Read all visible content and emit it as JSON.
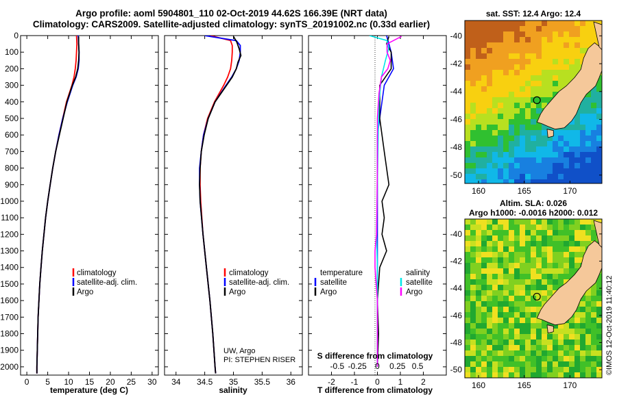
{
  "header": {
    "line1": "Argo profile: aoml 5904801_110 02-Oct-2019 44.62S 166.39E (NRT data)",
    "line2": "Climatology: CARS2009. Satellite-adjusted climatology: synTS_20191002.nc (0.33d earlier)"
  },
  "colors": {
    "climatology": "#ff0000",
    "satellite": "#0000ff",
    "argo": "#000000",
    "satellite_salinity": "#00e6e6",
    "argo_salinity": "#ff00ff",
    "land": "#f5c89a"
  },
  "chart_data": [
    {
      "type": "line",
      "id": "temperature",
      "xlabel": "temperature (deg C)",
      "xlim": [
        -1.5,
        31.5
      ],
      "xticks": [
        0,
        5,
        10,
        15,
        20,
        25,
        30
      ],
      "ylim": [
        0,
        2050
      ],
      "yticks": [
        0,
        100,
        200,
        300,
        400,
        500,
        600,
        700,
        800,
        900,
        1000,
        1100,
        1200,
        1300,
        1400,
        1500,
        1600,
        1700,
        1800,
        1900,
        2000
      ],
      "grid": false,
      "legend": {
        "position": "bottom-right",
        "entries": [
          "climatology",
          "satellite-adj. clim.",
          "Argo"
        ]
      },
      "series": [
        {
          "name": "climatology",
          "color": "#ff0000",
          "depth": [
            0,
            50,
            100,
            150,
            200,
            250,
            300,
            400,
            500,
            600,
            700,
            800,
            900,
            1000,
            1100,
            1200,
            1300,
            1400,
            1500,
            1600,
            1700,
            1800,
            1900,
            2000,
            2040
          ],
          "values": [
            11.9,
            12.0,
            11.9,
            11.8,
            11.6,
            11.3,
            10.8,
            9.5,
            8.6,
            7.7,
            6.9,
            6.2,
            5.6,
            5.0,
            4.5,
            4.1,
            3.7,
            3.4,
            3.1,
            2.9,
            2.7,
            2.6,
            2.5,
            2.4,
            2.4
          ]
        },
        {
          "name": "satellite-adj. clim.",
          "color": "#0000ff",
          "depth": [
            0,
            50,
            100,
            150,
            200,
            250,
            300,
            400,
            500,
            600,
            700,
            800,
            900,
            1000,
            1100,
            1200,
            1300,
            1400,
            1500,
            1600,
            1700,
            1800,
            1900,
            2000,
            2040
          ],
          "values": [
            12.3,
            12.4,
            12.5,
            12.5,
            12.3,
            11.8,
            11.0,
            9.7,
            8.6,
            7.7,
            6.9,
            6.2,
            5.6,
            5.0,
            4.5,
            4.1,
            3.7,
            3.4,
            3.1,
            2.9,
            2.7,
            2.6,
            2.5,
            2.4,
            2.4
          ]
        },
        {
          "name": "Argo",
          "color": "#000000",
          "depth": [
            5,
            50,
            100,
            150,
            200,
            250,
            300,
            400,
            500,
            600,
            700,
            800,
            900,
            1000,
            1100,
            1200,
            1300,
            1400,
            1500,
            1600,
            1700,
            1800,
            1900,
            2000,
            2040
          ],
          "values": [
            12.4,
            12.4,
            12.5,
            12.4,
            12.2,
            11.7,
            10.9,
            9.6,
            8.7,
            7.8,
            6.9,
            6.2,
            5.6,
            5.0,
            4.5,
            4.1,
            3.7,
            3.4,
            3.1,
            2.9,
            2.7,
            2.6,
            2.5,
            2.4,
            2.4
          ]
        }
      ]
    },
    {
      "type": "line",
      "id": "salinity",
      "xlabel": "salinity",
      "xlim": [
        33.8,
        36.2
      ],
      "xticks": [
        34,
        34.5,
        35,
        35.5,
        36
      ],
      "xticklabels": [
        "34",
        "34.5",
        "35",
        "35.5",
        "36"
      ],
      "ylim": [
        0,
        2050
      ],
      "legend": {
        "position": "bottom-right",
        "entries": [
          "climatology",
          "satellite-adj. clim.",
          "Argo"
        ]
      },
      "credit_lines": [
        "UW, Argo",
        "PI: STEPHEN RISER"
      ],
      "series": [
        {
          "name": "climatology",
          "color": "#ff0000",
          "depth": [
            0,
            30,
            60,
            100,
            150,
            200,
            250,
            300,
            400,
            500,
            600,
            700,
            800,
            900,
            1000,
            1200,
            1400,
            1600,
            1800,
            2000,
            2040
          ],
          "values": [
            34.6,
            34.95,
            34.98,
            34.98,
            34.97,
            34.95,
            34.9,
            34.83,
            34.67,
            34.55,
            34.48,
            34.44,
            34.42,
            34.42,
            34.43,
            34.47,
            34.53,
            34.59,
            34.64,
            34.68,
            34.69
          ]
        },
        {
          "name": "satellite-adj. clim.",
          "color": "#0000ff",
          "depth": [
            0,
            30,
            60,
            100,
            150,
            200,
            250,
            300,
            400,
            500,
            600,
            700,
            800,
            900,
            1000,
            1200,
            1400,
            1600,
            1800,
            2000,
            2040
          ],
          "values": [
            34.5,
            35.05,
            35.12,
            35.12,
            35.1,
            35.05,
            34.97,
            34.87,
            34.68,
            34.56,
            34.48,
            34.44,
            34.41,
            34.41,
            34.42,
            34.47,
            34.53,
            34.59,
            34.64,
            34.68,
            34.69
          ]
        },
        {
          "name": "Argo",
          "color": "#000000",
          "depth": [
            5,
            40,
            80,
            120,
            160,
            200,
            250,
            300,
            400,
            500,
            600,
            700,
            800,
            900,
            1000,
            1200,
            1400,
            1600,
            1800,
            2000,
            2040
          ],
          "values": [
            35.0,
            35.06,
            35.1,
            35.13,
            35.08,
            35.05,
            34.98,
            34.88,
            34.68,
            34.56,
            34.49,
            34.44,
            34.42,
            34.41,
            34.42,
            34.47,
            34.53,
            34.59,
            34.64,
            34.68,
            34.69
          ]
        }
      ]
    },
    {
      "type": "line",
      "id": "differences",
      "xlabel": "T difference from climatology",
      "xlim": [
        -3,
        3
      ],
      "xticks": [
        -2,
        -1,
        0,
        1,
        2
      ],
      "top_axis_label": "S difference from climatology",
      "top_axis_ticks": [
        "-0.5",
        "-0.25",
        "0",
        "0.25",
        "0.5"
      ],
      "ylim": [
        0,
        2050
      ],
      "legend": {
        "temperature_title": "temperature",
        "salinity_title": "salinity",
        "temperature_entries": [
          "satellite",
          "Argo"
        ],
        "salinity_entries": [
          "satellite",
          "Argo"
        ]
      },
      "series": [
        {
          "name": "T satellite",
          "color": "#0000ff",
          "depth": [
            0,
            50,
            100,
            200,
            300,
            400,
            600,
            800,
            1000,
            1200,
            1400,
            1600,
            1800,
            2000
          ],
          "values": [
            0.4,
            0.5,
            0.6,
            0.7,
            0.3,
            0.2,
            0.0,
            0.0,
            0.0,
            0.0,
            0.0,
            0.0,
            0.0,
            0.0
          ]
        },
        {
          "name": "T Argo",
          "color": "#000000",
          "depth": [
            5,
            50,
            100,
            200,
            300,
            400,
            500,
            700,
            900,
            1000,
            1100,
            1200,
            1300,
            1400,
            1600,
            1800,
            2000
          ],
          "values": [
            0.5,
            0.4,
            0.6,
            0.6,
            0.1,
            0.1,
            0.1,
            0.3,
            0.5,
            0.2,
            0.3,
            0.2,
            0.4,
            0.1,
            0.0,
            0.05,
            0.0
          ]
        },
        {
          "name": "S satellite",
          "color": "#00e6e6",
          "depth": [
            0,
            30,
            80,
            150,
            250,
            400,
            600,
            900,
            1200,
            1400,
            1600,
            2000
          ],
          "values": [
            -0.1,
            0.12,
            0.14,
            0.1,
            0.05,
            0.02,
            0.01,
            0.0,
            -0.01,
            0.0,
            0.0,
            0.0
          ]
        },
        {
          "name": "S Argo",
          "color": "#ff00ff",
          "depth": [
            5,
            50,
            100,
            150,
            200,
            250,
            350,
            500,
            800,
            1200,
            1300,
            1400,
            1600,
            2000
          ],
          "values": [
            0.3,
            0.12,
            0.12,
            0.16,
            0.13,
            0.05,
            0.02,
            0.0,
            0.0,
            -0.01,
            -0.03,
            -0.03,
            0.0,
            0.0
          ]
        }
      ]
    },
    {
      "type": "heatmap",
      "id": "sst-map",
      "title": "sat. SST: 12.4 Argo: 12.4",
      "xticks": [
        160,
        165,
        170
      ],
      "yticks": [
        -40,
        -42,
        -44,
        -46,
        -48,
        -50
      ],
      "xlim": [
        158.5,
        173.5
      ],
      "ylim": [
        -50.6,
        -38.9
      ],
      "marker": {
        "lon": 166.39,
        "lat": -44.62
      }
    },
    {
      "type": "heatmap",
      "id": "sla-map",
      "title_line1": "Altim. SLA: 0.026",
      "title_line2": "Argo h1000: -0.0016 h2000: 0.012",
      "xticks": [
        160,
        165,
        170
      ],
      "yticks": [
        -40,
        -42,
        -44,
        -46,
        -48,
        -50
      ],
      "xlim": [
        158.5,
        173.5
      ],
      "ylim": [
        -50.6,
        -38.9
      ],
      "marker": {
        "lon": 166.39,
        "lat": -44.62
      },
      "watermark": "©IMOS 12-Oct-2019 11:40:12"
    }
  ]
}
